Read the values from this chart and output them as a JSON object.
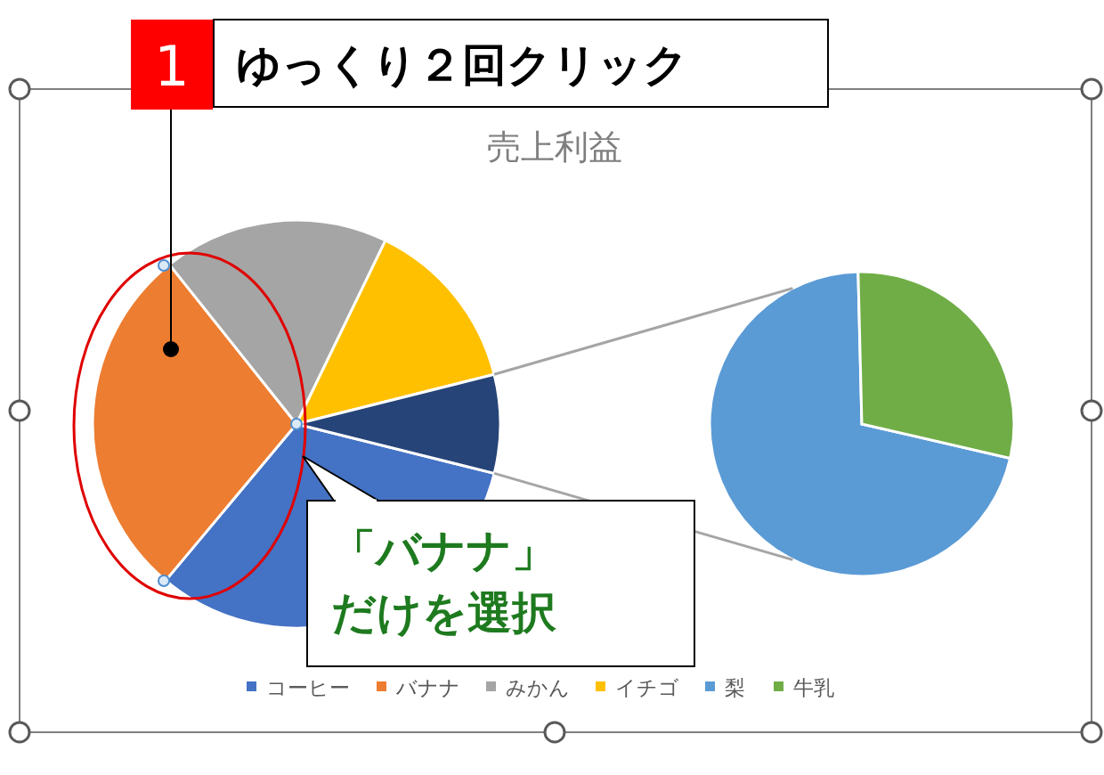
{
  "chart_data": [
    {
      "type": "pie",
      "title": "売上利益",
      "categories": [
        "コーヒー",
        "バナナ",
        "みかん",
        "イチゴ",
        null
      ],
      "values": [
        32.2,
        28.2,
        17.9,
        13.9,
        7.8
      ],
      "colors": [
        "#4472c4",
        "#ed7d31",
        "#a5a5a5",
        "#ffc000",
        "#264478"
      ],
      "legend": "bottom",
      "annotations": [
        "1",
        "ゆっくり２回クリック",
        "「バナナ」",
        "だけを選択"
      ]
    },
    {
      "type": "pie",
      "categories": [
        "梨",
        "牛乳"
      ],
      "values": [
        71,
        29
      ],
      "colors": [
        "#5b9bd5",
        "#70ad47"
      ],
      "legend": "bottom"
    }
  ]
}
